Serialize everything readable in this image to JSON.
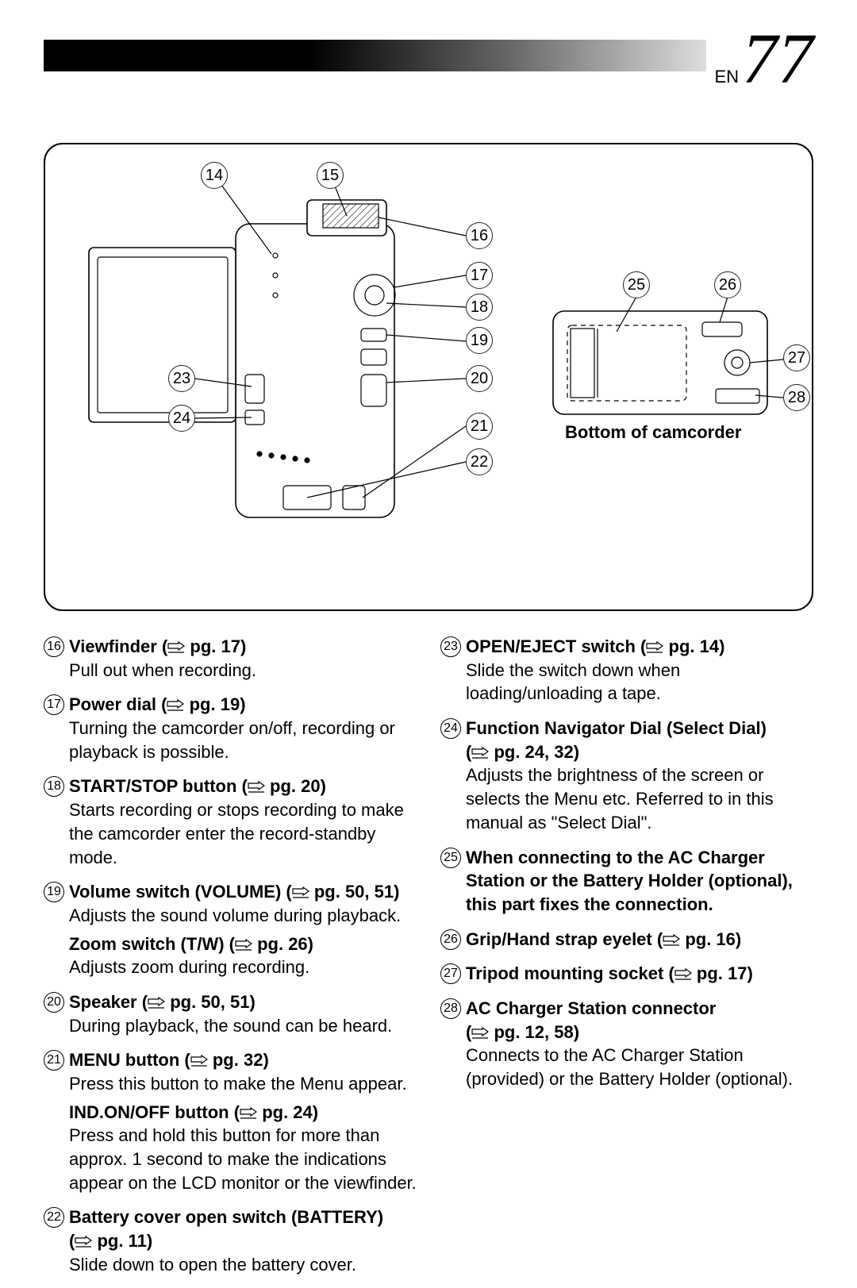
{
  "page": {
    "prefix": "EN",
    "number": "77"
  },
  "diagram": {
    "bottom_caption": "Bottom of camcorder",
    "callouts_left": [
      "14",
      "15",
      "16",
      "17",
      "18",
      "19",
      "20",
      "21",
      "22",
      "23",
      "24"
    ],
    "callouts_right": [
      "25",
      "26",
      "27",
      "28"
    ]
  },
  "left_items": [
    {
      "n": "16",
      "title": "Viewfinder",
      "ref": "pg. 17",
      "desc": "Pull out when recording."
    },
    {
      "n": "17",
      "title": "Power dial",
      "ref": "pg. 19",
      "desc": "Turning the camcorder on/off, recording or playback is possible."
    },
    {
      "n": "18",
      "title": "START/STOP button",
      "ref": "pg. 20",
      "desc": "Starts recording or stops recording to make the camcorder enter the record-standby mode."
    },
    {
      "n": "19",
      "title": "Volume switch (VOLUME)",
      "ref": "pg. 50, 51",
      "desc": "Adjusts the sound volume during playback.",
      "sub": {
        "title": "Zoom switch (T/W)",
        "ref": "pg. 26",
        "desc": "Adjusts zoom during recording."
      }
    },
    {
      "n": "20",
      "title": "Speaker",
      "ref": "pg. 50, 51",
      "desc": "During playback, the sound can be heard."
    },
    {
      "n": "21",
      "title": "MENU button",
      "ref": "pg. 32",
      "desc": "Press this button to make the Menu appear.",
      "sub": {
        "title": "IND.ON/OFF button",
        "ref": "pg. 24",
        "desc": "Press and hold this button for more than approx. 1 second to make the indications appear on the LCD monitor or the viewfinder."
      }
    },
    {
      "n": "22",
      "title": "Battery cover open switch (BATTERY)",
      "ref": "pg. 11",
      "ref_newline": true,
      "desc": "Slide down to open the battery cover."
    }
  ],
  "right_items": [
    {
      "n": "23",
      "title": "OPEN/EJECT switch",
      "ref": "pg. 14",
      "desc": "Slide the switch down when loading/unloading a tape."
    },
    {
      "n": "24",
      "title": "Function Navigator Dial (Select Dial)",
      "ref": "pg. 24, 32",
      "ref_newline": true,
      "desc": "Adjusts the brightness of the screen or selects the Menu etc. Referred to in this manual as \"Select Dial\"."
    },
    {
      "n": "25",
      "title": "When connecting to the AC Charger Station or the Battery Holder (optional), this part fixes the connection.",
      "ref": "",
      "desc": ""
    },
    {
      "n": "26",
      "title": "Grip/Hand strap eyelet",
      "ref": "pg. 16",
      "desc": ""
    },
    {
      "n": "27",
      "title": "Tripod mounting socket",
      "ref": "pg. 17",
      "desc": ""
    },
    {
      "n": "28",
      "title": "AC Charger Station connector",
      "ref": "pg. 12, 58",
      "ref_newline": true,
      "desc": "Connects to the AC Charger Station (provided) or the Battery Holder (optional)."
    }
  ]
}
